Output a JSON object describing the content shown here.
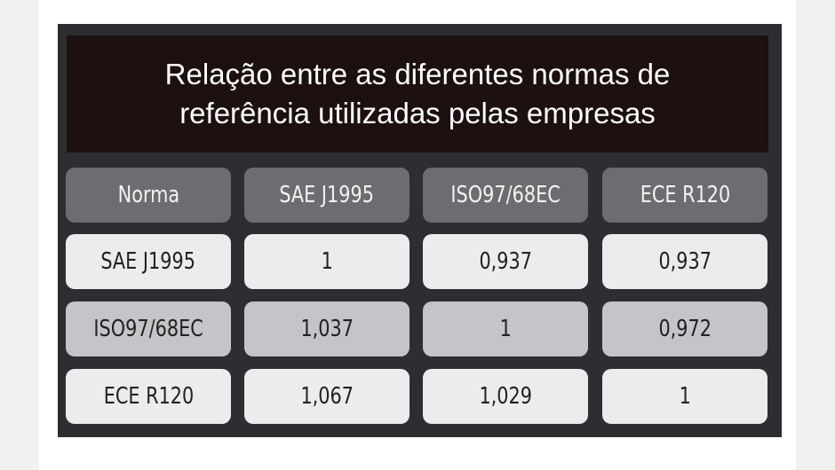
{
  "title": {
    "line1": "Relação entre as diferentes normas de",
    "line2": "referência utilizadas pelas empresas"
  },
  "table": {
    "headers": [
      "Norma",
      "SAE J1995",
      "ISO97/68EC",
      "ECE R120"
    ],
    "rows": [
      [
        "SAE J1995",
        "1",
        "0,937",
        "0,937"
      ],
      [
        "ISO97/68EC",
        "1,037",
        "1",
        "0,972"
      ],
      [
        "ECE R120",
        "1,067",
        "1,029",
        "1"
      ]
    ]
  },
  "colors": {
    "panel": "#2c2e31",
    "title_bg": "#1c1110",
    "header": "#6d6d71",
    "row_light": "#ebecee",
    "row_mid": "#c4c5c9"
  }
}
